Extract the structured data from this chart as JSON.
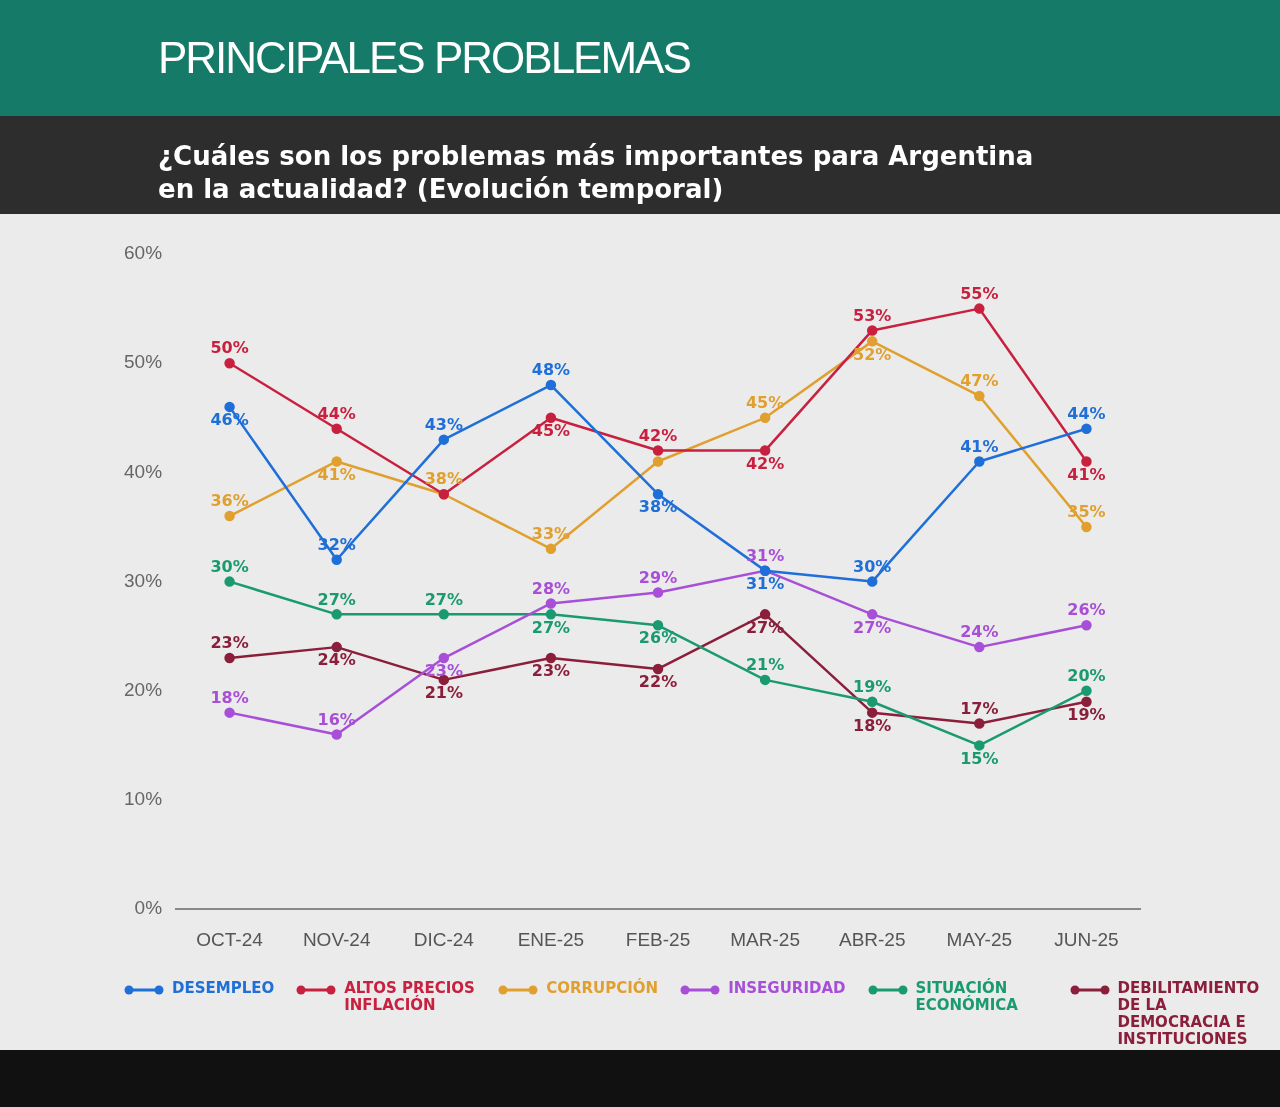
{
  "chart_data": {
    "type": "line",
    "title": "PRINCIPALES PROBLEMAS",
    "subtitle": "¿Cuáles son los problemas más importantes para Argentina en la actualidad? (Evolución temporal)",
    "categories": [
      "OCT-24",
      "NOV-24",
      "DIC-24",
      "ENE-25",
      "FEB-25",
      "MAR-25",
      "ABR-25",
      "MAY-25",
      "JUN-25"
    ],
    "ylim": [
      0,
      60
    ],
    "yticks": [
      {
        "value": 0,
        "label": "0%"
      },
      {
        "value": 10,
        "label": "10%"
      },
      {
        "value": 20,
        "label": "20%"
      },
      {
        "value": 30,
        "label": "30%"
      },
      {
        "value": 40,
        "label": "40%"
      },
      {
        "value": 50,
        "label": "50%"
      },
      {
        "value": 60,
        "label": "60%"
      }
    ],
    "grid": false,
    "legend": "bottom",
    "marker": "circle",
    "line_style": "solid",
    "series": [
      {
        "name": "DESEMPLEO",
        "color": "#1f6fd8",
        "values": [
          46,
          32,
          43,
          48,
          38,
          31,
          30,
          41,
          44
        ],
        "value_labels": [
          "46%",
          "32%",
          "43%",
          "48%",
          "38%",
          "31%",
          "30%",
          "41%",
          "44%"
        ]
      },
      {
        "name": "ALTOS PRECIOS INFLACIÓN",
        "color": "#c8203f",
        "values": [
          50,
          44,
          38,
          45,
          42,
          42,
          53,
          55,
          41
        ],
        "value_labels": [
          "50%",
          "44%",
          null,
          "45%",
          "42%",
          "42%",
          "53%",
          "55%",
          "41%"
        ]
      },
      {
        "name": "CORRUPCIÓN",
        "color": "#e0a030",
        "values": [
          36,
          41,
          38,
          33,
          41,
          45,
          52,
          47,
          35
        ],
        "value_labels": [
          "36%",
          "41%",
          "38%",
          "33%",
          null,
          "45%",
          "52%",
          "47%",
          "35%"
        ]
      },
      {
        "name": "INSEGURIDAD",
        "color": "#a84fd8",
        "values": [
          18,
          16,
          23,
          28,
          29,
          31,
          27,
          24,
          26
        ],
        "value_labels": [
          "18%",
          "16%",
          "23%",
          "28%",
          "29%",
          "31%",
          "27%",
          "24%",
          "26%"
        ]
      },
      {
        "name": "SITUACIÓN ECONÓMICA",
        "color": "#1a9a70",
        "values": [
          30,
          27,
          27,
          27,
          26,
          21,
          19,
          15,
          20
        ],
        "value_labels": [
          "30%",
          "27%",
          "27%",
          "27%",
          "26%",
          "21%",
          "19%",
          "15%",
          "20%"
        ]
      },
      {
        "name": "DEBILITAMIENTO DE LA DEMOCRACIA E INSTITUCIONES",
        "color": "#8b1e3a",
        "values": [
          23,
          24,
          21,
          23,
          22,
          27,
          18,
          17,
          19
        ],
        "value_labels": [
          "23%",
          "24%",
          "21%",
          "23%",
          "22%",
          "27%",
          "18%",
          "17%",
          "19%"
        ]
      }
    ]
  }
}
